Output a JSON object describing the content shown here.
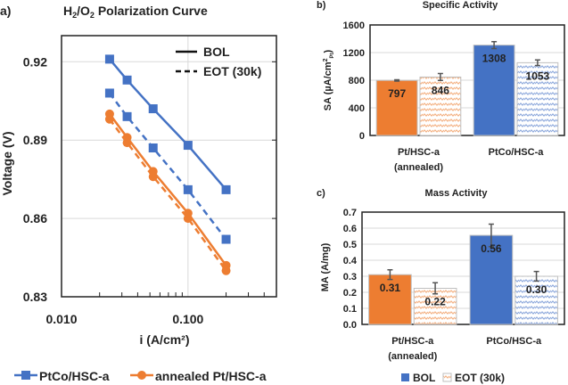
{
  "chart_data": [
    {
      "panel": "a)",
      "type": "line",
      "title": "H2/O2 Polarization Curve",
      "xlabel": "i (A/cm²)",
      "ylabel": "Voltage (V)",
      "xscale": "log",
      "xlim": [
        0.01,
        0.5
      ],
      "ylim": [
        0.83,
        0.93
      ],
      "xticks": [
        "0.010",
        "0.100"
      ],
      "yticks": [
        "0.92",
        "0.89",
        "0.86",
        "0.83"
      ],
      "grid": true,
      "style_legend": [
        {
          "label": "BOL",
          "dash": "solid"
        },
        {
          "label": "EOT (30k)",
          "dash": "dashed"
        }
      ],
      "legend": [
        {
          "label": "PtCo/HSC-a",
          "color": "#4472C4",
          "marker": "square"
        },
        {
          "label": "annealed Pt/HSC-a",
          "color": "#ED7D31",
          "marker": "circle"
        }
      ],
      "x": [
        0.024,
        0.033,
        0.053,
        0.1,
        0.2
      ],
      "series": [
        {
          "sample": "PtCo/HSC-a",
          "condition": "BOL",
          "color": "#4472C4",
          "marker": "square",
          "dash": "solid",
          "values": [
            0.921,
            0.913,
            0.902,
            0.888,
            0.871
          ]
        },
        {
          "sample": "PtCo/HSC-a",
          "condition": "EOT (30k)",
          "color": "#4472C4",
          "marker": "square",
          "dash": "dashed",
          "values": [
            0.908,
            0.899,
            0.887,
            0.871,
            0.852
          ]
        },
        {
          "sample": "annealed Pt/HSC-a",
          "condition": "BOL",
          "color": "#ED7D31",
          "marker": "circle",
          "dash": "solid",
          "values": [
            0.9,
            0.891,
            0.878,
            0.862,
            0.842
          ]
        },
        {
          "sample": "annealed Pt/HSC-a",
          "condition": "EOT (30k)",
          "color": "#ED7D31",
          "marker": "circle",
          "dash": "dashed",
          "values": [
            0.898,
            0.889,
            0.876,
            0.86,
            0.84
          ]
        }
      ]
    },
    {
      "panel": "b)",
      "type": "bar",
      "title": "Specific Activity",
      "ylabel": "SA (µA/cm²Pt)",
      "ylim": [
        0,
        1600
      ],
      "yticks": [
        "0",
        "400",
        "800",
        "1200",
        "1600"
      ],
      "grid": true,
      "categories": [
        [
          "Pt/HSC-a",
          "(annealed)"
        ],
        [
          "PtCo/HSC-a"
        ]
      ],
      "colors": [
        "#ED7D31",
        "#4472C4"
      ],
      "series": [
        {
          "name": "BOL",
          "values": [
            797,
            1308
          ],
          "errors": [
            10,
            50
          ],
          "labels": [
            "797",
            "1308"
          ]
        },
        {
          "name": "EOT (30k)",
          "values": [
            846,
            1053
          ],
          "errors": [
            50,
            40
          ],
          "labels": [
            "846",
            "1053"
          ]
        }
      ]
    },
    {
      "panel": "c)",
      "type": "bar",
      "title": "Mass Activity",
      "ylabel": "MA (A/mg)",
      "ylim": [
        0,
        0.7
      ],
      "yticks": [
        "0.0",
        "0.1",
        "0.2",
        "0.3",
        "0.4",
        "0.5",
        "0.6",
        "0.7"
      ],
      "grid": true,
      "categories": [
        [
          "Pt/HSC-a",
          "(annealed)"
        ],
        [
          "PtCo/HSC-a"
        ]
      ],
      "colors": [
        "#ED7D31",
        "#4472C4"
      ],
      "series": [
        {
          "name": "BOL",
          "values": [
            0.31,
            0.555
          ],
          "errors": [
            0.03,
            0.07
          ],
          "labels": [
            "0.31",
            "0.56"
          ]
        },
        {
          "name": "EOT (30k)",
          "values": [
            0.225,
            0.3
          ],
          "errors": [
            0.035,
            0.03
          ],
          "labels": [
            "0.22",
            "0.30"
          ]
        }
      ],
      "legend": [
        {
          "label": "BOL",
          "fill": "solid"
        },
        {
          "label": "EOT (30k)",
          "fill": "hatched"
        }
      ],
      "legend_position": "bottom"
    }
  ]
}
